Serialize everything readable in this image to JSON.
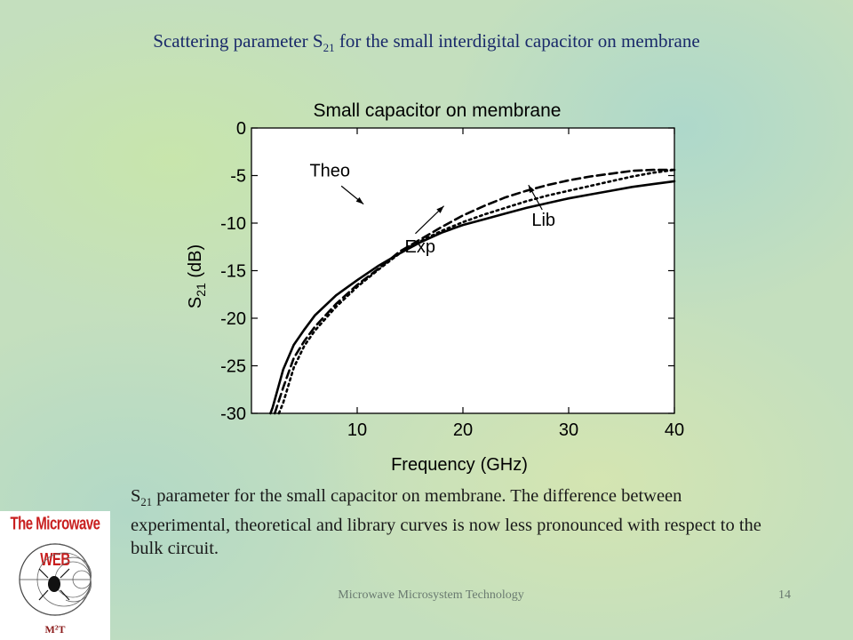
{
  "slide": {
    "title_main": "Scattering parameter S",
    "title_sub": "21",
    "title_rest": " for the small interdigital capacitor on membrane",
    "caption_main": "S",
    "caption_sub": "21",
    "caption_rest": " parameter for the small capacitor on membrane. The difference between experimental, theoretical and library curves is now less pronounced with respect to the bulk circuit.",
    "footer": "Microwave Microsystem Technology",
    "page_number": "14"
  },
  "logo": {
    "banner": "The Microwave WEB",
    "mark": "M²T"
  },
  "chart_data": {
    "type": "line",
    "title": "Small capacitor on membrane",
    "xlabel_main": "Frequency",
    "xlabel_unit": "(GHz)",
    "ylabel_main": "S",
    "ylabel_sub": "21",
    "ylabel_unit": " (dB)",
    "xlim": [
      0,
      40
    ],
    "ylim": [
      -30,
      0
    ],
    "x_ticks": [
      10,
      20,
      30,
      40
    ],
    "y_ticks": [
      0,
      -5,
      -10,
      -15,
      -20,
      -25,
      -30
    ],
    "grid": false,
    "legend": "none",
    "series": [
      {
        "name": "Exp",
        "style": "solid",
        "x": [
          1.8,
          2,
          3,
          4,
          5,
          6,
          8,
          10,
          12,
          14,
          16,
          18,
          20,
          22,
          24,
          26,
          28,
          30,
          32,
          34,
          36,
          38,
          40
        ],
        "y": [
          -30,
          -29.4,
          -25.4,
          -22.8,
          -21.2,
          -19.7,
          -17.6,
          -16.0,
          -14.5,
          -13.2,
          -12.0,
          -11.0,
          -10.2,
          -9.6,
          -9.0,
          -8.4,
          -7.9,
          -7.4,
          -7.0,
          -6.6,
          -6.2,
          -5.9,
          -5.6
        ]
      },
      {
        "name": "Theo",
        "style": "dashed",
        "x": [
          2.2,
          3,
          4,
          5,
          6,
          8,
          10,
          12,
          14,
          16,
          18,
          20,
          22,
          24,
          26,
          28,
          30,
          32,
          34,
          36,
          38,
          40
        ],
        "y": [
          -30,
          -27.3,
          -24.2,
          -22.4,
          -20.9,
          -18.5,
          -16.5,
          -14.8,
          -13.0,
          -11.7,
          -10.4,
          -9.2,
          -8.2,
          -7.3,
          -6.6,
          -6.0,
          -5.5,
          -5.1,
          -4.8,
          -4.5,
          -4.4,
          -4.4
        ]
      },
      {
        "name": "Lib",
        "style": "dotted",
        "x": [
          2.6,
          3,
          4,
          5,
          6,
          8,
          10,
          12,
          14,
          16,
          18,
          20,
          22,
          24,
          26,
          28,
          30,
          32,
          34,
          36,
          38,
          40
        ],
        "y": [
          -30,
          -28.9,
          -25.2,
          -22.9,
          -21.3,
          -18.8,
          -16.7,
          -14.9,
          -13.2,
          -11.9,
          -10.8,
          -9.9,
          -9.1,
          -8.4,
          -7.7,
          -7.1,
          -6.6,
          -6.1,
          -5.6,
          -5.1,
          -4.7,
          -4.4
        ]
      }
    ],
    "annotations": [
      {
        "text": "Theo",
        "series": "Theo",
        "label_x": 5.5,
        "label_y": -5.1,
        "arrow_from": [
          8.5,
          -6.1
        ],
        "arrow_to": [
          10.6,
          -8.0
        ]
      },
      {
        "text": "Lib",
        "series": "Lib",
        "label_x": 26.5,
        "label_y": -10.3,
        "arrow_from": [
          27.5,
          -8.6
        ],
        "arrow_to": [
          26.2,
          -6.0
        ]
      },
      {
        "text": "Exp",
        "series": "Exp",
        "label_x": 14.5,
        "label_y": -13.1,
        "arrow_from": [
          15.5,
          -11.1
        ],
        "arrow_to": [
          18.2,
          -8.2
        ]
      }
    ]
  }
}
